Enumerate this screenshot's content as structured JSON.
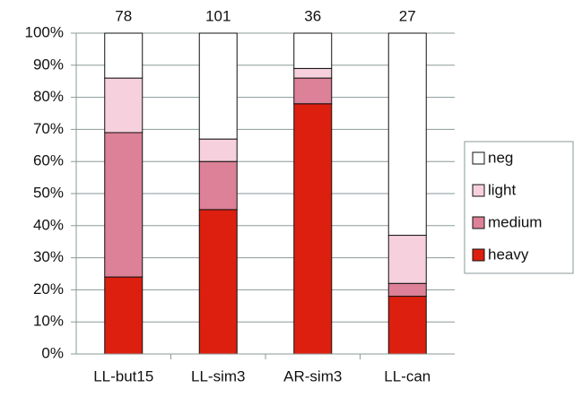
{
  "chart_data": {
    "type": "stacked-bar-100",
    "categories": [
      "LL-but15",
      "LL-sim3",
      "AR-sim3",
      "LL-can"
    ],
    "totals": [
      78,
      101,
      36,
      27
    ],
    "series": [
      {
        "name": "heavy",
        "color": "#dd1f0f",
        "values": [
          24,
          45,
          78,
          18
        ]
      },
      {
        "name": "medium",
        "color": "#dc8197",
        "values": [
          45,
          15,
          8,
          4
        ]
      },
      {
        "name": "light",
        "color": "#f7d0dd",
        "values": [
          17,
          7,
          3,
          15
        ]
      },
      {
        "name": "neg",
        "color": "#ffffff",
        "values": [
          14,
          33,
          11,
          63
        ]
      }
    ],
    "ylim": [
      0,
      100
    ],
    "yticks": [
      {
        "value": 0,
        "label": "0%"
      },
      {
        "value": 10,
        "label": "10%"
      },
      {
        "value": 20,
        "label": "20%"
      },
      {
        "value": 30,
        "label": "30%"
      },
      {
        "value": 40,
        "label": "40%"
      },
      {
        "value": 50,
        "label": "50%"
      },
      {
        "value": 60,
        "label": "60%"
      },
      {
        "value": 70,
        "label": "70%"
      },
      {
        "value": 80,
        "label": "80%"
      },
      {
        "value": 90,
        "label": "90%"
      },
      {
        "value": 100,
        "label": "100%"
      }
    ],
    "grid": true,
    "legend": "right"
  }
}
